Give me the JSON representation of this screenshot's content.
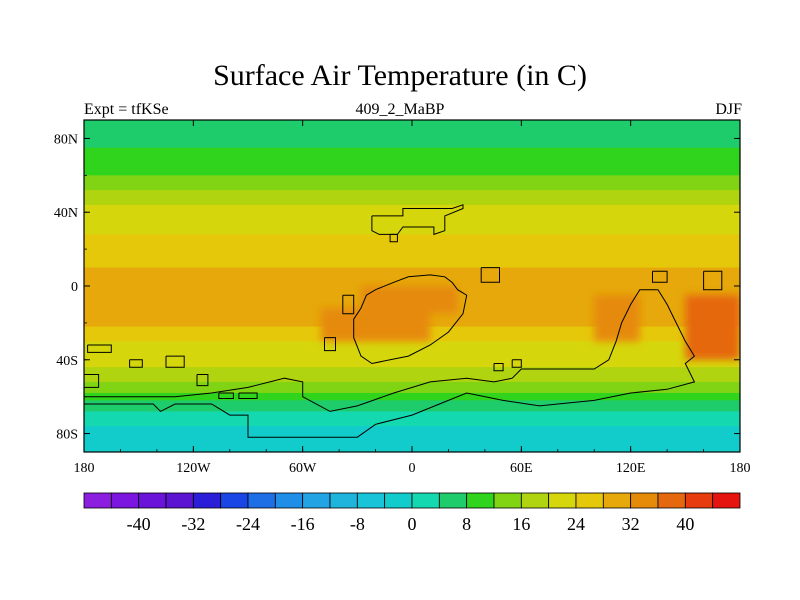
{
  "chart_data": {
    "type": "heatmap",
    "title": "Surface Air Temperature (in C)",
    "subtitle_left": "Expt = tfKSe",
    "subtitle_center": "409_2_MaBP",
    "subtitle_right": "DJF",
    "x_ticks": [
      {
        "value": -180,
        "label": "180"
      },
      {
        "value": -120,
        "label": "120W"
      },
      {
        "value": -60,
        "label": "60W"
      },
      {
        "value": 0,
        "label": "0"
      },
      {
        "value": 60,
        "label": "60E"
      },
      {
        "value": 120,
        "label": "120E"
      },
      {
        "value": 180,
        "label": "180"
      }
    ],
    "y_ticks": [
      {
        "value": 80,
        "label": "80N"
      },
      {
        "value": 40,
        "label": "40N"
      },
      {
        "value": 0,
        "label": "0"
      },
      {
        "value": -40,
        "label": "40S"
      },
      {
        "value": -80,
        "label": "80S"
      }
    ],
    "xlim": [
      -180,
      180
    ],
    "ylim": [
      -90,
      90
    ],
    "colorbar": {
      "levels": [
        -44,
        -40,
        -36,
        -32,
        -28,
        -24,
        -20,
        -16,
        -12,
        -8,
        -4,
        0,
        4,
        8,
        12,
        16,
        20,
        24,
        28,
        32,
        36,
        40,
        44
      ],
      "labels": [
        {
          "value": -40,
          "label": "-40"
        },
        {
          "value": -32,
          "label": "-32"
        },
        {
          "value": -24,
          "label": "-24"
        },
        {
          "value": -16,
          "label": "-16"
        },
        {
          "value": -8,
          "label": "-8"
        },
        {
          "value": 0,
          "label": "0"
        },
        {
          "value": 8,
          "label": "8"
        },
        {
          "value": 16,
          "label": "16"
        },
        {
          "value": 24,
          "label": "24"
        },
        {
          "value": 32,
          "label": "32"
        },
        {
          "value": 40,
          "label": "40"
        }
      ],
      "colors": [
        "#8c1ee0",
        "#7a16e0",
        "#6a14da",
        "#5a14d2",
        "#2a1ed8",
        "#1a46e6",
        "#1e6ee6",
        "#1e8ee6",
        "#22a4e4",
        "#1eb4dc",
        "#18c4d8",
        "#12cccc",
        "#14d8b0",
        "#1ecc6c",
        "#30d41c",
        "#80d414",
        "#b0d410",
        "#d6d60c",
        "#e6c80a",
        "#e6a80a",
        "#e68a0a",
        "#e6680e",
        "#e63c0e",
        "#e6140e"
      ]
    },
    "bands": [
      {
        "lat": [
          75,
          90
        ],
        "value": 6
      },
      {
        "lat": [
          66,
          75
        ],
        "value": 9
      },
      {
        "lat": [
          60,
          66
        ],
        "value": 11
      },
      {
        "lat": [
          52,
          60
        ],
        "value": 14
      },
      {
        "lat": [
          44,
          52
        ],
        "value": 17
      },
      {
        "lat": [
          36,
          44
        ],
        "value": 20
      },
      {
        "lat": [
          28,
          36
        ],
        "value": 23
      },
      {
        "lat": [
          20,
          28
        ],
        "value": 25
      },
      {
        "lat": [
          10,
          20
        ],
        "value": 27
      },
      {
        "lat": [
          -22,
          10
        ],
        "value": 29
      },
      {
        "lat": [
          -30,
          -22
        ],
        "value": 26
      },
      {
        "lat": [
          -36,
          -30
        ],
        "value": 23
      },
      {
        "lat": [
          -44,
          -36
        ],
        "value": 20
      },
      {
        "lat": [
          -52,
          -44
        ],
        "value": 17
      },
      {
        "lat": [
          -58,
          -52
        ],
        "value": 13
      },
      {
        "lat": [
          -62,
          -58
        ],
        "value": 9
      },
      {
        "lat": [
          -68,
          -62
        ],
        "value": 5
      },
      {
        "lat": [
          -76,
          -68
        ],
        "value": 2
      },
      {
        "lat": [
          -90,
          -76
        ],
        "value": -1
      }
    ],
    "hot_regions": [
      {
        "lon": [
          -28,
          10
        ],
        "lat": [
          -30,
          0
        ],
        "value": 33
      },
      {
        "lon": [
          5,
          25
        ],
        "lat": [
          -15,
          0
        ],
        "value": 35
      },
      {
        "lon": [
          100,
          125
        ],
        "lat": [
          -30,
          -5
        ],
        "value": 33
      },
      {
        "lon": [
          150,
          180
        ],
        "lat": [
          -40,
          -5
        ],
        "value": 37
      },
      {
        "lon": [
          -50,
          -25
        ],
        "lat": [
          -30,
          -12
        ],
        "value": 33
      }
    ],
    "land_outlines": [
      [
        [
          -22,
          38
        ],
        [
          -5,
          38
        ],
        [
          -5,
          42
        ],
        [
          10,
          42
        ],
        [
          22,
          42
        ],
        [
          28,
          44
        ],
        [
          28,
          42
        ],
        [
          18,
          38
        ],
        [
          18,
          30
        ],
        [
          12,
          28
        ],
        [
          12,
          32
        ],
        [
          -5,
          32
        ],
        [
          -8,
          28
        ],
        [
          -18,
          28
        ],
        [
          -22,
          30
        ],
        [
          -22,
          38
        ]
      ],
      [
        [
          -25,
          -5
        ],
        [
          -20,
          -2
        ],
        [
          -10,
          2
        ],
        [
          -2,
          5
        ],
        [
          10,
          6
        ],
        [
          18,
          5
        ],
        [
          22,
          2
        ],
        [
          25,
          -2
        ],
        [
          30,
          -5
        ],
        [
          28,
          -15
        ],
        [
          20,
          -25
        ],
        [
          10,
          -32
        ],
        [
          -2,
          -38
        ],
        [
          -12,
          -40
        ],
        [
          -22,
          -42
        ],
        [
          -28,
          -38
        ],
        [
          -32,
          -28
        ],
        [
          -32,
          -18
        ],
        [
          -28,
          -12
        ],
        [
          -25,
          -5
        ]
      ],
      [
        [
          -38,
          -5
        ],
        [
          -32,
          -5
        ],
        [
          -32,
          -15
        ],
        [
          -38,
          -15
        ],
        [
          -38,
          -5
        ]
      ],
      [
        [
          -48,
          -28
        ],
        [
          -42,
          -28
        ],
        [
          -42,
          -35
        ],
        [
          -48,
          -35
        ],
        [
          -48,
          -28
        ]
      ],
      [
        [
          -178,
          -32
        ],
        [
          -165,
          -32
        ],
        [
          -165,
          -36
        ],
        [
          -178,
          -36
        ],
        [
          -178,
          -32
        ]
      ],
      [
        [
          -180,
          -48
        ],
        [
          -172,
          -48
        ],
        [
          -172,
          -55
        ],
        [
          -180,
          -55
        ],
        [
          -180,
          -48
        ]
      ],
      [
        [
          -155,
          -40
        ],
        [
          -148,
          -40
        ],
        [
          -148,
          -44
        ],
        [
          -155,
          -44
        ],
        [
          -155,
          -40
        ]
      ],
      [
        [
          -135,
          -38
        ],
        [
          -125,
          -38
        ],
        [
          -125,
          -44
        ],
        [
          -135,
          -44
        ],
        [
          -135,
          -38
        ]
      ],
      [
        [
          -118,
          -48
        ],
        [
          -112,
          -48
        ],
        [
          -112,
          -54
        ],
        [
          -118,
          -54
        ],
        [
          -118,
          -48
        ]
      ],
      [
        [
          -106,
          -58
        ],
        [
          -98,
          -58
        ],
        [
          -98,
          -61
        ],
        [
          -106,
          -61
        ],
        [
          -106,
          -58
        ]
      ],
      [
        [
          -95,
          -58
        ],
        [
          -85,
          -58
        ],
        [
          -85,
          -61
        ],
        [
          -95,
          -61
        ],
        [
          -95,
          -58
        ]
      ],
      [
        [
          -165,
          -60
        ],
        [
          -180,
          -60
        ],
        [
          -180,
          -64
        ],
        [
          -142,
          -64
        ],
        [
          -138,
          -68
        ],
        [
          -130,
          -64
        ],
        [
          -110,
          -64
        ],
        [
          -100,
          -70
        ],
        [
          -90,
          -70
        ],
        [
          -90,
          -82
        ],
        [
          -60,
          -82
        ],
        [
          -30,
          -82
        ],
        [
          -20,
          -75
        ],
        [
          0,
          -70
        ],
        [
          20,
          -62
        ],
        [
          30,
          -58
        ],
        [
          50,
          -62
        ],
        [
          70,
          -65
        ],
        [
          80,
          -64
        ],
        [
          100,
          -62
        ],
        [
          120,
          -58
        ],
        [
          140,
          -56
        ],
        [
          155,
          -52
        ],
        [
          150,
          -42
        ],
        [
          155,
          -38
        ],
        [
          150,
          -30
        ],
        [
          145,
          -20
        ],
        [
          140,
          -10
        ],
        [
          135,
          -2
        ],
        [
          125,
          -2
        ],
        [
          120,
          -10
        ],
        [
          115,
          -20
        ],
        [
          112,
          -30
        ],
        [
          108,
          -40
        ],
        [
          100,
          -45
        ],
        [
          60,
          -45
        ],
        [
          55,
          -50
        ],
        [
          45,
          -52
        ],
        [
          30,
          -50
        ],
        [
          10,
          -52
        ],
        [
          -10,
          -58
        ],
        [
          -30,
          -65
        ],
        [
          -45,
          -68
        ],
        [
          -60,
          -60
        ],
        [
          -60,
          -52
        ],
        [
          -70,
          -50
        ],
        [
          -90,
          -55
        ],
        [
          -110,
          -58
        ],
        [
          -130,
          -60
        ],
        [
          -165,
          -60
        ]
      ],
      [
        [
          38,
          10
        ],
        [
          48,
          10
        ],
        [
          48,
          2
        ],
        [
          38,
          2
        ],
        [
          38,
          10
        ]
      ],
      [
        [
          45,
          -42
        ],
        [
          50,
          -42
        ],
        [
          50,
          -46
        ],
        [
          45,
          -46
        ],
        [
          45,
          -42
        ]
      ],
      [
        [
          55,
          -40
        ],
        [
          60,
          -40
        ],
        [
          60,
          -44
        ],
        [
          55,
          -44
        ],
        [
          55,
          -40
        ]
      ],
      [
        [
          132,
          8
        ],
        [
          140,
          8
        ],
        [
          140,
          2
        ],
        [
          132,
          2
        ],
        [
          132,
          8
        ]
      ],
      [
        [
          160,
          8
        ],
        [
          170,
          8
        ],
        [
          170,
          -2
        ],
        [
          160,
          -2
        ],
        [
          160,
          8
        ]
      ],
      [
        [
          -12,
          28
        ],
        [
          -8,
          28
        ],
        [
          -8,
          24
        ],
        [
          -12,
          24
        ],
        [
          -12,
          28
        ]
      ]
    ]
  }
}
